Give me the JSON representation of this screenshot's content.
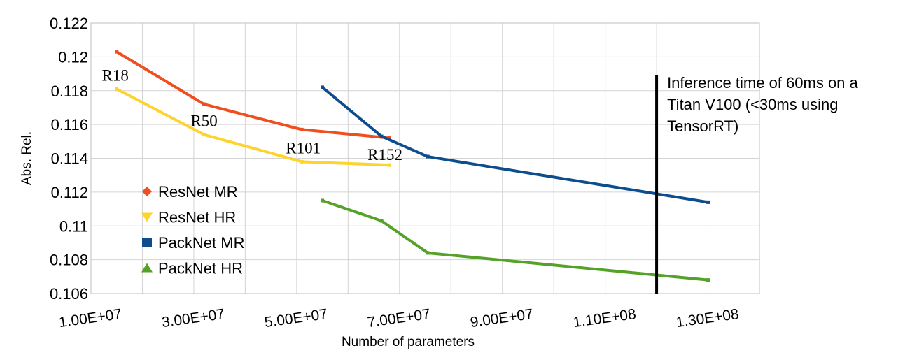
{
  "chart_data": {
    "type": "line",
    "xlabel": "Number of parameters",
    "ylabel": "Abs. Rel.",
    "xlim": [
      10000000,
      140000000
    ],
    "ylim": [
      0.106,
      0.122
    ],
    "x_ticks": [
      "1.00E+07",
      "3.00E+07",
      "5.00E+07",
      "7.00E+07",
      "9.00E+07",
      "1.10E+08",
      "1.30E+08"
    ],
    "x_tick_values": [
      10000000,
      30000000,
      50000000,
      70000000,
      90000000,
      110000000,
      130000000
    ],
    "y_ticks": [
      "0.106",
      "0.108",
      "0.11",
      "0.112",
      "0.114",
      "0.116",
      "0.118",
      "0.12",
      "0.122"
    ],
    "y_tick_values": [
      0.106,
      0.108,
      0.11,
      0.112,
      0.114,
      0.116,
      0.118,
      0.12,
      0.122
    ],
    "grid": true,
    "legend_position": "bottom-left",
    "series": [
      {
        "name": "ResNet MR",
        "color": "#f04e1f",
        "marker": "diamond",
        "x": [
          15000000,
          32000000,
          51000000,
          68000000
        ],
        "y": [
          0.1203,
          0.1172,
          0.1157,
          0.1152
        ]
      },
      {
        "name": "ResNet HR",
        "color": "#fdd42e",
        "marker": "triangle-down",
        "x": [
          15000000,
          32000000,
          51000000,
          68000000
        ],
        "y": [
          0.1181,
          0.1154,
          0.1138,
          0.1136
        ]
      },
      {
        "name": "PackNet MR",
        "color": "#0e4d8d",
        "marker": "square",
        "x": [
          55000000,
          66500000,
          75500000,
          130000000
        ],
        "y": [
          0.1182,
          0.1153,
          0.1141,
          0.1114
        ]
      },
      {
        "name": "PackNet HR",
        "color": "#55a229",
        "marker": "triangle-up",
        "x": [
          55000000,
          66500000,
          75500000,
          130000000
        ],
        "y": [
          0.1115,
          0.1103,
          0.1084,
          0.1068
        ]
      }
    ],
    "point_labels": [
      {
        "text": "R18",
        "x": 15000000,
        "y": 0.1181
      },
      {
        "text": "R50",
        "x": 32000000,
        "y": 0.1154
      },
      {
        "text": "R101",
        "x": 51000000,
        "y": 0.1138
      },
      {
        "text": "R152",
        "x": 68000000,
        "y": 0.1136
      }
    ],
    "vertical_marker": {
      "x": 120000000,
      "y_range": [
        0.106,
        0.1189
      ],
      "color": "#000000",
      "annotation": [
        "Inference time of 60ms on a",
        "Titan V100 (<30ms using",
        "TensorRT)"
      ]
    }
  }
}
